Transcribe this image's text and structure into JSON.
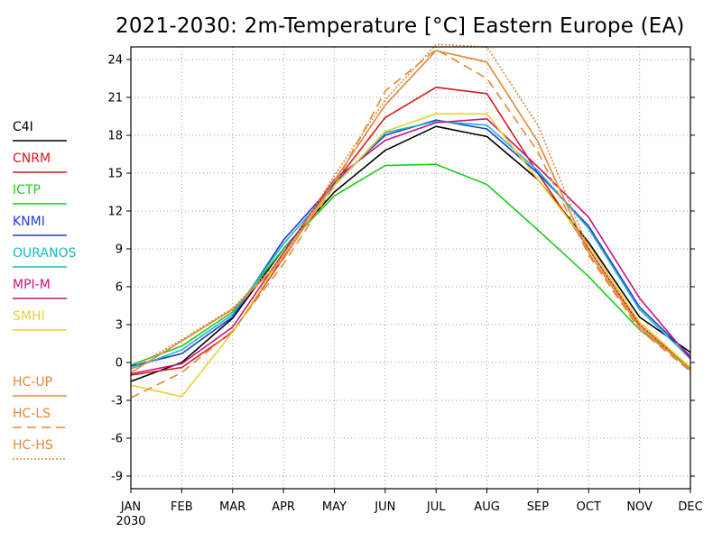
{
  "title": "2021-2030: 2m-Temperature [°C] Eastern Europe (EA)",
  "chart_data": {
    "type": "line",
    "title": "2021-2030: 2m-Temperature [°C] Eastern Europe (EA)",
    "xlabel": "",
    "ylabel": "",
    "categories": [
      "JAN",
      "FEB",
      "MAR",
      "APR",
      "MAY",
      "JUN",
      "JUL",
      "AUG",
      "SEP",
      "OCT",
      "NOV",
      "DEC"
    ],
    "x_sublabel": "2030",
    "yticks": [
      -9,
      -6,
      -3,
      0,
      3,
      6,
      9,
      12,
      15,
      18,
      21,
      24
    ],
    "ylim": [
      -10,
      25
    ],
    "grid": true,
    "legend_position": "left",
    "series": [
      {
        "name": "C4I",
        "color": "#000000",
        "dash": "solid",
        "values": [
          -1.5,
          0.0,
          3.5,
          9.0,
          13.5,
          16.8,
          18.7,
          17.9,
          14.5,
          9.5,
          3.6,
          0.8
        ]
      },
      {
        "name": "CNRM",
        "color": "#d61a1a",
        "dash": "solid",
        "values": [
          -1.0,
          -0.4,
          2.4,
          8.3,
          14.2,
          19.4,
          21.8,
          21.3,
          15.0,
          9.0,
          3.0,
          -0.5
        ]
      },
      {
        "name": "ICTP",
        "color": "#1ecc1e",
        "dash": "solid",
        "values": [
          -0.2,
          1.3,
          4.0,
          9.0,
          13.2,
          15.6,
          15.7,
          14.1,
          10.5,
          6.8,
          2.6,
          -0.4
        ]
      },
      {
        "name": "KNMI",
        "color": "#1f3fd6",
        "dash": "solid",
        "values": [
          -0.3,
          0.7,
          3.6,
          9.7,
          14.2,
          18.0,
          19.2,
          18.5,
          15.0,
          10.8,
          4.4,
          0.5
        ]
      },
      {
        "name": "OURANOS",
        "color": "#1ab8c2",
        "dash": "solid",
        "values": [
          -0.5,
          1.0,
          3.8,
          9.4,
          14.0,
          18.2,
          19.1,
          18.8,
          15.2,
          10.6,
          4.2,
          0.3
        ]
      },
      {
        "name": "MPI-M",
        "color": "#c9137e",
        "dash": "solid",
        "values": [
          -0.9,
          -0.1,
          2.8,
          8.7,
          14.5,
          17.6,
          19.0,
          19.3,
          15.5,
          11.5,
          5.1,
          0.3
        ]
      },
      {
        "name": "SMHI",
        "color": "#e8d32e",
        "dash": "solid",
        "values": [
          -1.8,
          -2.7,
          2.4,
          8.5,
          14.0,
          18.3,
          19.7,
          19.7,
          14.5,
          9.3,
          3.2,
          -0.4
        ]
      },
      {
        "name": "HC-UP",
        "color": "#e08a3a",
        "dash": "solid",
        "values": [
          -0.8,
          1.7,
          4.2,
          8.2,
          14.4,
          20.4,
          24.7,
          23.8,
          17.5,
          8.7,
          2.8,
          -0.6
        ]
      },
      {
        "name": "HC-LS",
        "color": "#e08a3a",
        "dash": "dashed",
        "values": [
          -2.8,
          -0.8,
          2.5,
          7.8,
          14.0,
          21.5,
          24.8,
          22.5,
          16.7,
          8.5,
          2.6,
          -0.7
        ]
      },
      {
        "name": "HC-HS",
        "color": "#e08a3a",
        "dash": "dotted",
        "values": [
          -0.5,
          1.8,
          4.3,
          8.4,
          14.8,
          20.8,
          25.2,
          25.0,
          18.8,
          9.0,
          3.0,
          -0.5
        ]
      }
    ]
  }
}
